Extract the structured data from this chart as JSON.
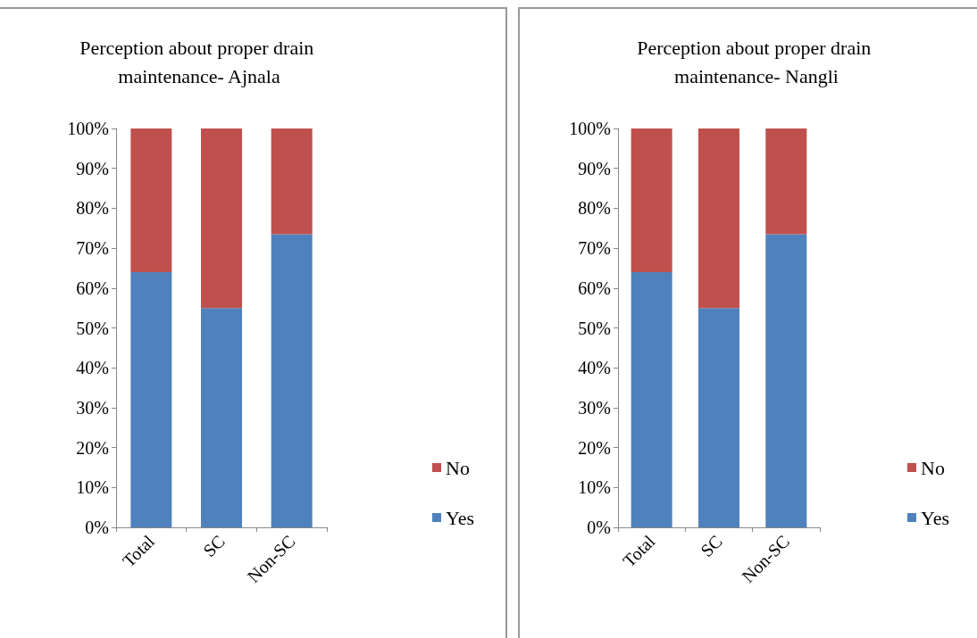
{
  "chart_data": [
    {
      "type": "bar",
      "title": "Perception about proper drain maintenance- Ajnala",
      "categories": [
        "Total",
        "SC",
        "Non-SC"
      ],
      "stacked": true,
      "ylim": [
        0,
        100
      ],
      "yticks": [
        {
          "value": 0,
          "label": "0%"
        },
        {
          "value": 10,
          "label": "10%"
        },
        {
          "value": 20,
          "label": "20%"
        },
        {
          "value": 30,
          "label": "30%"
        },
        {
          "value": 40,
          "label": "40%"
        },
        {
          "value": 50,
          "label": "50%"
        },
        {
          "value": 60,
          "label": "60%"
        },
        {
          "value": 70,
          "label": "70%"
        },
        {
          "value": 80,
          "label": "80%"
        },
        {
          "value": 90,
          "label": "90%"
        },
        {
          "value": 100,
          "label": "100%"
        }
      ],
      "legend": "right",
      "grid": false,
      "series": [
        {
          "name": "Yes",
          "color": "#4f81bd",
          "values": [
            64,
            55,
            73.5
          ]
        },
        {
          "name": "No",
          "color": "#c0504d",
          "values": [
            36,
            45,
            26.5
          ]
        }
      ]
    },
    {
      "type": "bar",
      "title": "Perception about proper drain maintenance- Nangli",
      "categories": [
        "Total",
        "SC",
        "Non-SC"
      ],
      "stacked": true,
      "ylim": [
        0,
        100
      ],
      "yticks": [
        {
          "value": 0,
          "label": "0%"
        },
        {
          "value": 10,
          "label": "10%"
        },
        {
          "value": 20,
          "label": "20%"
        },
        {
          "value": 30,
          "label": "30%"
        },
        {
          "value": 40,
          "label": "40%"
        },
        {
          "value": 50,
          "label": "50%"
        },
        {
          "value": 60,
          "label": "60%"
        },
        {
          "value": 70,
          "label": "70%"
        },
        {
          "value": 80,
          "label": "80%"
        },
        {
          "value": 90,
          "label": "90%"
        },
        {
          "value": 100,
          "label": "100%"
        }
      ],
      "legend": "right",
      "grid": false,
      "series": [
        {
          "name": "Yes",
          "color": "#4f81bd",
          "values": [
            64,
            55,
            73.5
          ]
        },
        {
          "name": "No",
          "color": "#c0504d",
          "values": [
            36,
            45,
            26.5
          ]
        }
      ]
    }
  ]
}
